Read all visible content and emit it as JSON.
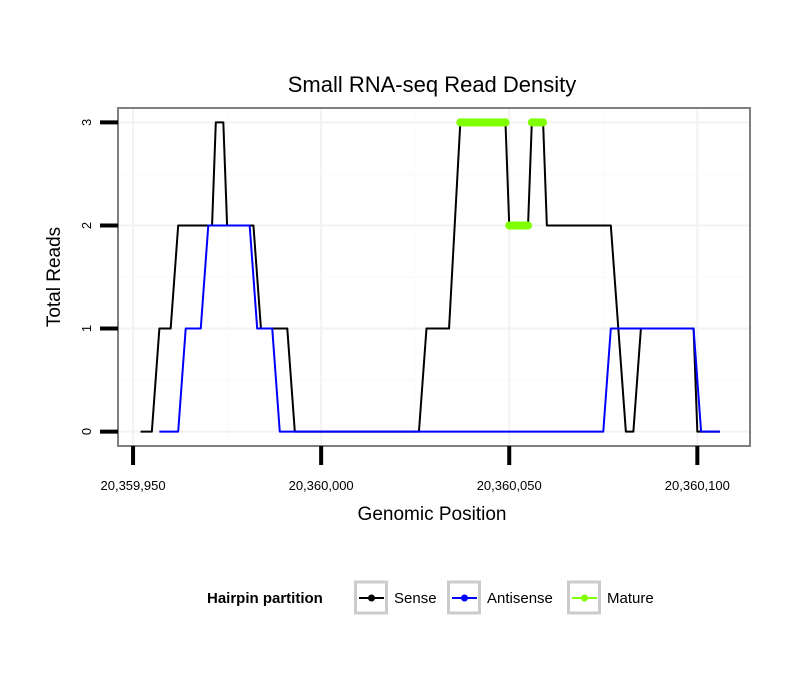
{
  "chart_data": {
    "type": "line",
    "title": "Small RNA-seq Read Density",
    "xlabel": "Genomic Position",
    "ylabel": "Total Reads",
    "xlim": [
      20359946,
      20360114
    ],
    "ylim": [
      -0.14,
      3.14
    ],
    "x_ticks": [
      20359950,
      20360000,
      20360050,
      20360100
    ],
    "x_tick_labels": [
      "20,359,950",
      "20,360,000",
      "20,360,050",
      "20,360,100"
    ],
    "y_ticks": [
      0,
      1,
      2,
      3
    ],
    "y_tick_labels": [
      "0",
      "1",
      "2",
      "3"
    ],
    "legend_title": "Hairpin partition",
    "legend_position": "bottom",
    "series": [
      {
        "name": "Sense",
        "color": "#000000",
        "style": "line",
        "points": [
          [
            20359952,
            0
          ],
          [
            20359955,
            0
          ],
          [
            20359957,
            1
          ],
          [
            20359960,
            1
          ],
          [
            20359962,
            2
          ],
          [
            20359971,
            2
          ],
          [
            20359972,
            3
          ],
          [
            20359974,
            3
          ],
          [
            20359975,
            2
          ],
          [
            20359982,
            2
          ],
          [
            20359984,
            1
          ],
          [
            20359988,
            1
          ],
          [
            20359989,
            1
          ],
          [
            20359991,
            1
          ],
          [
            20359993,
            0
          ],
          [
            20360008,
            0
          ],
          [
            20360026,
            0
          ],
          [
            20360028,
            1
          ],
          [
            20360034,
            1
          ],
          [
            20360037,
            3
          ],
          [
            20360049,
            3
          ],
          [
            20360050,
            2
          ],
          [
            20360055,
            2
          ],
          [
            20360056,
            3
          ],
          [
            20360059,
            3
          ],
          [
            20360060,
            2
          ],
          [
            20360077,
            2
          ],
          [
            20360079,
            1
          ],
          [
            20360081,
            0
          ],
          [
            20360083,
            0
          ],
          [
            20360085,
            1
          ],
          [
            20360099,
            1
          ],
          [
            20360100,
            0
          ],
          [
            20360106,
            0
          ]
        ]
      },
      {
        "name": "Antisense",
        "color": "#0000ff",
        "style": "line",
        "points": [
          [
            20359957,
            0
          ],
          [
            20359962,
            0
          ],
          [
            20359964,
            1
          ],
          [
            20359968,
            1
          ],
          [
            20359970,
            2
          ],
          [
            20359981,
            2
          ],
          [
            20359983,
            1
          ],
          [
            20359987,
            1
          ],
          [
            20359989,
            0
          ],
          [
            20360075,
            0
          ],
          [
            20360077,
            1
          ],
          [
            20360081,
            1
          ],
          [
            20360083,
            1
          ],
          [
            20360099,
            1
          ],
          [
            20360101,
            0
          ],
          [
            20360106,
            0
          ]
        ]
      },
      {
        "name": "Mature",
        "color": "#7fff00",
        "style": "thick",
        "segments": [
          [
            [
              20360037,
              3
            ],
            [
              20360049,
              3
            ]
          ],
          [
            [
              20360050,
              2
            ],
            [
              20360055,
              2
            ]
          ],
          [
            [
              20360056,
              3
            ],
            [
              20360059,
              3
            ]
          ]
        ]
      }
    ]
  }
}
